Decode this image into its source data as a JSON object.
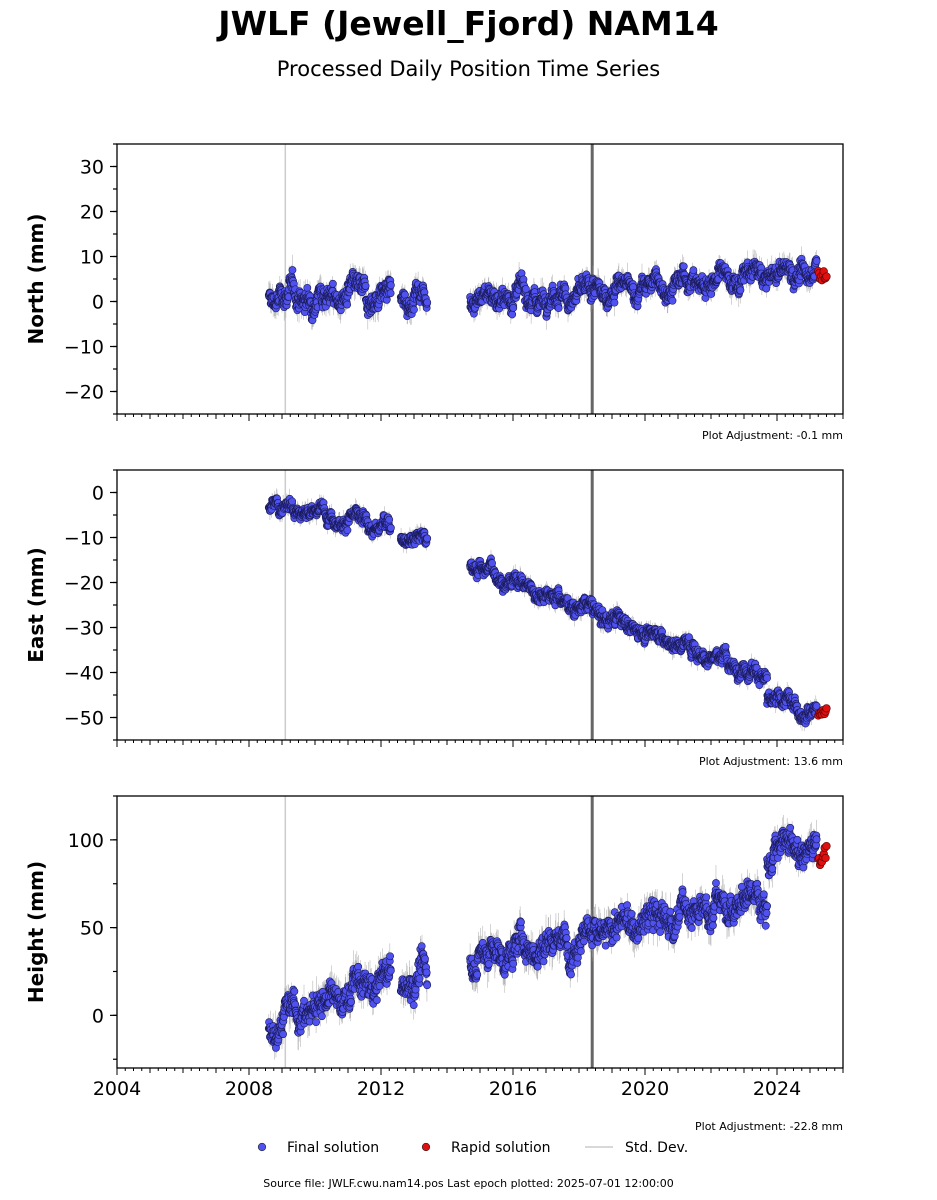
{
  "header": {
    "title": "JWLF (Jewell_Fjord) NAM14",
    "subtitle": "Processed Daily Position Time Series"
  },
  "footer": {
    "text": "Source file: JWLF.cwu.nam14.pos  Last epoch plotted: 2025-07-01 12:00:00"
  },
  "legend": {
    "placement": "bottom-center",
    "items": [
      {
        "label": "Final solution",
        "color": "#4f52f0"
      },
      {
        "label": "Rapid solution",
        "color": "#e01010"
      },
      {
        "label": "Std. Dev.",
        "color": "#cccccc"
      }
    ]
  },
  "chart_data": [
    {
      "type": "scatter",
      "ylabel": "North (mm)",
      "adjustment": "Plot Adjustment: -0.1 mm",
      "xlim": [
        2004,
        2026
      ],
      "ylim": [
        -25,
        35
      ],
      "yticks": [
        -20,
        -10,
        0,
        10,
        20,
        30
      ],
      "ytick_labels": [
        "−20",
        "−10",
        "0",
        "10",
        "20",
        "30"
      ],
      "xticks": [
        2004,
        2008,
        2012,
        2016,
        2020,
        2024
      ],
      "xtick_labels": [],
      "vlines": [
        {
          "x": 2009.1,
          "style": "light"
        },
        {
          "x": 2018.4,
          "style": "dark"
        }
      ],
      "final_solution_trend": [
        {
          "start": 2008.6,
          "end": 2012.3,
          "y0": 1.0,
          "y1": 1.5,
          "noise": 2.5
        },
        {
          "start": 2012.6,
          "end": 2013.4,
          "y0": 1.0,
          "y1": 1.5,
          "noise": 2.5
        },
        {
          "start": 2014.7,
          "end": 2018.4,
          "y0": 1.0,
          "y1": 1.5,
          "noise": 2.2
        },
        {
          "start": 2018.4,
          "end": 2025.2,
          "y0": 2.0,
          "y1": 7.0,
          "noise": 2.2
        }
      ],
      "rapid_solution": {
        "start": 2025.25,
        "end": 2025.5,
        "y": 6.0,
        "noise": 1.2
      }
    },
    {
      "type": "scatter",
      "ylabel": "East (mm)",
      "adjustment": "Plot Adjustment: 13.6 mm",
      "xlim": [
        2004,
        2026
      ],
      "ylim": [
        -55,
        5
      ],
      "yticks": [
        -50,
        -40,
        -30,
        -20,
        -10,
        0
      ],
      "ytick_labels": [
        "−50",
        "−40",
        "−30",
        "−20",
        "−10",
        "0"
      ],
      "xticks": [
        2004,
        2008,
        2012,
        2016,
        2020,
        2024
      ],
      "xtick_labels": [],
      "vlines": [
        {
          "x": 2009.1,
          "style": "light"
        },
        {
          "x": 2018.4,
          "style": "dark"
        }
      ],
      "final_solution_trend": [
        {
          "start": 2008.6,
          "end": 2012.3,
          "y0": -2.0,
          "y1": -8.0,
          "noise": 1.6
        },
        {
          "start": 2012.6,
          "end": 2013.4,
          "y0": -9.0,
          "y1": -10.5,
          "noise": 1.6
        },
        {
          "start": 2014.7,
          "end": 2023.7,
          "y0": -16.0,
          "y1": -41.0,
          "noise": 1.6
        },
        {
          "start": 2023.7,
          "end": 2025.2,
          "y0": -46.0,
          "y1": -48.5,
          "noise": 1.6
        }
      ],
      "rapid_solution": {
        "start": 2025.25,
        "end": 2025.5,
        "y": -49.0,
        "noise": 0.9
      }
    },
    {
      "type": "scatter",
      "ylabel": "Height (mm)",
      "adjustment": "Plot Adjustment: -22.8 mm",
      "xlim": [
        2004,
        2026
      ],
      "ylim": [
        -30,
        125
      ],
      "yticks": [
        0,
        50,
        100
      ],
      "ytick_labels": [
        "0",
        "50",
        "100"
      ],
      "xticks": [
        2004,
        2008,
        2012,
        2016,
        2020,
        2024
      ],
      "xtick_labels": [
        "2004",
        "2008",
        "2012",
        "2016",
        "2020",
        "2024"
      ],
      "vlines": [
        {
          "x": 2009.1,
          "style": "light"
        },
        {
          "x": 2018.4,
          "style": "dark"
        }
      ],
      "final_solution_trend": [
        {
          "start": 2008.6,
          "end": 2012.3,
          "y0": -5.0,
          "y1": 22.0,
          "noise": 8.0
        },
        {
          "start": 2012.6,
          "end": 2013.4,
          "y0": 18.0,
          "y1": 22.0,
          "noise": 8.0
        },
        {
          "start": 2014.7,
          "end": 2023.7,
          "y0": 32.0,
          "y1": 68.0,
          "noise": 8.0
        },
        {
          "start": 2023.7,
          "end": 2025.2,
          "y0": 90.0,
          "y1": 98.0,
          "noise": 8.0
        }
      ],
      "rapid_solution": {
        "start": 2025.25,
        "end": 2025.5,
        "y": 90.0,
        "noise": 4.0
      }
    }
  ]
}
